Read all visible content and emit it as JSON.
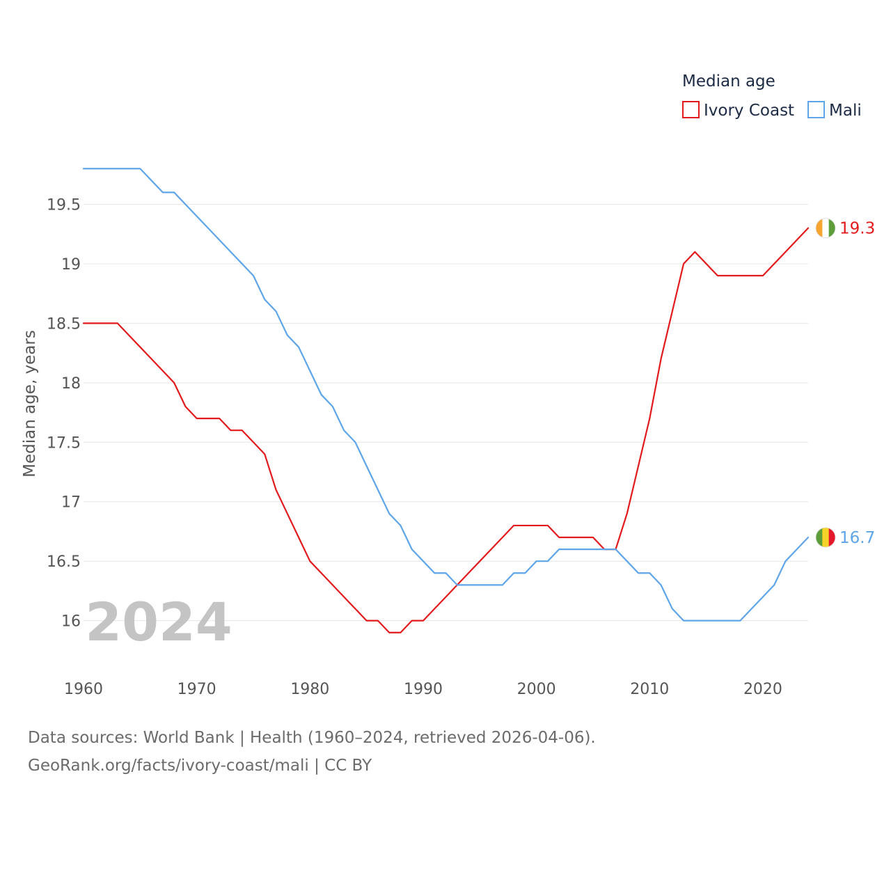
{
  "chart_data": {
    "type": "line",
    "legend_title": "Median age",
    "ylabel": "Median age, years",
    "xlabel": "",
    "xlim": [
      1960,
      2024
    ],
    "ylim": [
      15.6,
      19.93
    ],
    "x_ticks": [
      1960,
      1970,
      1980,
      1990,
      2000,
      2010,
      2020
    ],
    "y_ticks": [
      16,
      16.5,
      17,
      17.5,
      18,
      18.5,
      19,
      19.5
    ],
    "grid": true,
    "legend_position": "top-right",
    "year_watermark": "2024",
    "x": [
      1960,
      1961,
      1962,
      1963,
      1964,
      1965,
      1966,
      1967,
      1968,
      1969,
      1970,
      1971,
      1972,
      1973,
      1974,
      1975,
      1976,
      1977,
      1978,
      1979,
      1980,
      1981,
      1982,
      1983,
      1984,
      1985,
      1986,
      1987,
      1988,
      1989,
      1990,
      1991,
      1992,
      1993,
      1994,
      1995,
      1996,
      1997,
      1998,
      1999,
      2000,
      2001,
      2002,
      2003,
      2004,
      2005,
      2006,
      2007,
      2008,
      2009,
      2010,
      2011,
      2012,
      2013,
      2014,
      2015,
      2016,
      2017,
      2018,
      2019,
      2020,
      2021,
      2022,
      2023,
      2024
    ],
    "series": [
      {
        "name": "Ivory Coast",
        "color": "#e31a1c",
        "end_label": "19.3",
        "flag": "ivory-coast",
        "values": [
          18.5,
          18.5,
          18.5,
          18.5,
          18.4,
          18.3,
          18.2,
          18.1,
          18.0,
          17.8,
          17.7,
          17.7,
          17.7,
          17.6,
          17.6,
          17.5,
          17.4,
          17.1,
          16.9,
          16.7,
          16.5,
          16.4,
          16.3,
          16.2,
          16.1,
          16.0,
          16.0,
          15.9,
          15.9,
          16.0,
          16.0,
          16.1,
          16.2,
          16.3,
          16.4,
          16.5,
          16.6,
          16.7,
          16.8,
          16.8,
          16.8,
          16.8,
          16.7,
          16.7,
          16.7,
          16.7,
          16.6,
          16.6,
          16.9,
          17.3,
          17.7,
          18.2,
          18.6,
          19.0,
          19.1,
          19.0,
          18.9,
          18.9,
          18.9,
          18.9,
          18.9,
          19.0,
          19.1,
          19.2,
          19.3
        ]
      },
      {
        "name": "Mali",
        "color": "#5da5e8",
        "end_label": "16.7",
        "flag": "mali",
        "values": [
          19.8,
          19.8,
          19.8,
          19.8,
          19.8,
          19.8,
          19.7,
          19.6,
          19.6,
          19.5,
          19.4,
          19.3,
          19.2,
          19.1,
          19.0,
          18.9,
          18.7,
          18.6,
          18.4,
          18.3,
          18.1,
          17.9,
          17.8,
          17.6,
          17.5,
          17.3,
          17.1,
          16.9,
          16.8,
          16.6,
          16.5,
          16.4,
          16.4,
          16.3,
          16.3,
          16.3,
          16.3,
          16.3,
          16.4,
          16.4,
          16.5,
          16.5,
          16.6,
          16.6,
          16.6,
          16.6,
          16.6,
          16.6,
          16.5,
          16.4,
          16.4,
          16.3,
          16.1,
          16.0,
          16.0,
          16.0,
          16.0,
          16.0,
          16.0,
          16.1,
          16.2,
          16.3,
          16.5,
          16.6,
          16.7
        ]
      }
    ]
  },
  "footer": {
    "line1": "Data sources: World Bank | Health (1960–2024, retrieved 2026-04-06).",
    "line2": "GeoRank.org/facts/ivory-coast/mali | CC BY"
  },
  "colors": {
    "grid": "#e6e6e6",
    "tick_text": "#555555",
    "legend_text": "#1d2a44",
    "watermark": "#c4c4c4",
    "ivory_orange": "#f7a431",
    "ivory_white": "#ffffff",
    "ivory_green": "#5d9e3a",
    "mali_green": "#5d9e3a",
    "mali_yellow": "#f5d328",
    "mali_red": "#e3182b"
  }
}
